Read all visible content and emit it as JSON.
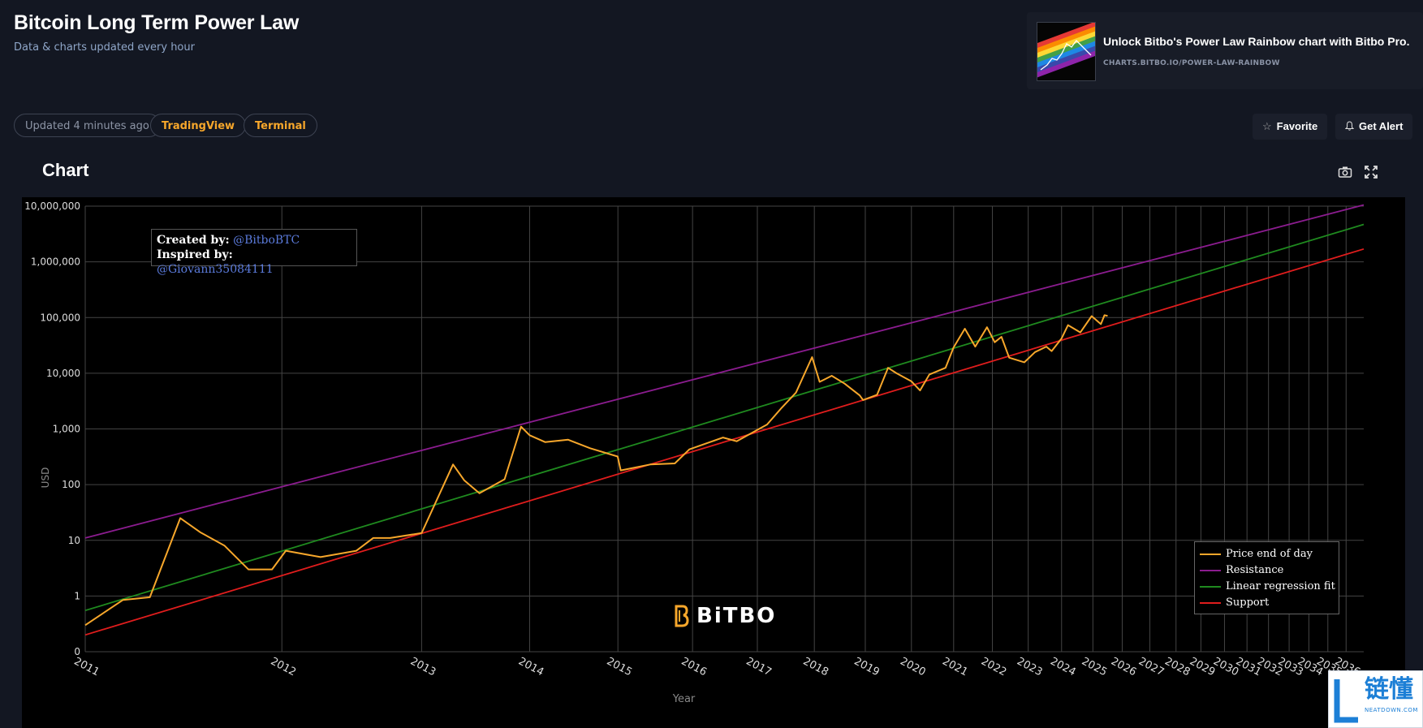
{
  "header": {
    "title": "Bitcoin Long Term Power Law",
    "subtitle": "Data & charts updated every hour"
  },
  "promo": {
    "title": "Unlock Bitbo's Power Law Rainbow chart with Bitbo Pro.",
    "link": "CHARTS.BITBO.IO/POWER-LAW-RAINBOW"
  },
  "pills": {
    "updated": "Updated 4 minutes ago",
    "tradingview": "TradingView",
    "terminal": "Terminal"
  },
  "actions": {
    "favorite": "Favorite",
    "get_alert": "Get Alert"
  },
  "chart_section": {
    "heading": "Chart"
  },
  "credits": {
    "created_label": "Created by:",
    "created_handle": "@BitboBTC",
    "inspired_label": "Inspired by:",
    "inspired_handle": "@Giovann35084111"
  },
  "watermark": "BiTBO",
  "corner_logo": {
    "text": "链懂",
    "sub": "NEATDOWN.COM"
  },
  "colors": {
    "price": "#f7a72b",
    "resistance": "#8b1c8f",
    "regression": "#1f8a1f",
    "support": "#e01d1d",
    "background": "#000000",
    "page": "#131722"
  },
  "chart_data": {
    "type": "line",
    "x_scale": "log",
    "y_scale": "log",
    "xlabel": "Year",
    "ylabel": "USD",
    "x_ticks": [
      "2011",
      "2012",
      "2013",
      "2014",
      "2015",
      "2016",
      "2017",
      "2018",
      "2019",
      "2020",
      "2021",
      "2022",
      "2023",
      "2024",
      "2025",
      "2026",
      "2027",
      "2028",
      "2029",
      "2030",
      "2031",
      "2032",
      "2033",
      "2034",
      "2035",
      "2036"
    ],
    "y_ticks": [
      "0",
      "1",
      "10",
      "100",
      "1,000",
      "10,000",
      "100,000",
      "1,000,000",
      "10,000,000"
    ],
    "y_tick_values": [
      0.1,
      1,
      10,
      100,
      1000,
      10000,
      100000,
      1000000,
      10000000
    ],
    "legend_position": "bottom-right",
    "grid": true,
    "series": [
      {
        "name": "Price end of day",
        "color": "#f7a72b",
        "points": [
          [
            "2011-01-01",
            0.3
          ],
          [
            "2011-03-01",
            0.85
          ],
          [
            "2011-04-15",
            0.95
          ],
          [
            "2011-06-08",
            25
          ],
          [
            "2011-07-15",
            14
          ],
          [
            "2011-09-01",
            8
          ],
          [
            "2011-10-20",
            3
          ],
          [
            "2011-12-10",
            3
          ],
          [
            "2012-01-10",
            6.5
          ],
          [
            "2012-04-01",
            5
          ],
          [
            "2012-07-01",
            6.5
          ],
          [
            "2012-08-15",
            11
          ],
          [
            "2012-10-01",
            11
          ],
          [
            "2013-01-01",
            13.5
          ],
          [
            "2013-04-09",
            230
          ],
          [
            "2013-05-15",
            120
          ],
          [
            "2013-07-05",
            70
          ],
          [
            "2013-10-01",
            125
          ],
          [
            "2013-11-30",
            1100
          ],
          [
            "2014-01-01",
            770
          ],
          [
            "2014-03-01",
            580
          ],
          [
            "2014-06-01",
            640
          ],
          [
            "2014-09-01",
            450
          ],
          [
            "2014-12-31",
            320
          ],
          [
            "2015-01-14",
            180
          ],
          [
            "2015-06-01",
            230
          ],
          [
            "2015-10-01",
            240
          ],
          [
            "2015-12-15",
            430
          ],
          [
            "2016-06-15",
            700
          ],
          [
            "2016-09-01",
            600
          ],
          [
            "2016-12-31",
            960
          ],
          [
            "2017-03-01",
            1200
          ],
          [
            "2017-06-01",
            2400
          ],
          [
            "2017-09-01",
            4500
          ],
          [
            "2017-12-17",
            19500
          ],
          [
            "2018-02-06",
            7000
          ],
          [
            "2018-05-01",
            9000
          ],
          [
            "2018-08-01",
            6500
          ],
          [
            "2018-11-20",
            4000
          ],
          [
            "2018-12-15",
            3300
          ],
          [
            "2019-04-01",
            4100
          ],
          [
            "2019-06-26",
            12500
          ],
          [
            "2019-09-01",
            10000
          ],
          [
            "2019-12-31",
            7200
          ],
          [
            "2020-03-13",
            4900
          ],
          [
            "2020-06-01",
            9500
          ],
          [
            "2020-10-20",
            12500
          ],
          [
            "2020-12-31",
            29000
          ],
          [
            "2021-04-14",
            63000
          ],
          [
            "2021-07-20",
            30000
          ],
          [
            "2021-11-10",
            67000
          ],
          [
            "2022-01-24",
            36000
          ],
          [
            "2022-04-01",
            45000
          ],
          [
            "2022-06-18",
            19000
          ],
          [
            "2022-11-21",
            15700
          ],
          [
            "2023-03-15",
            24000
          ],
          [
            "2023-07-15",
            30000
          ],
          [
            "2023-09-11",
            25000
          ],
          [
            "2023-12-31",
            42000
          ],
          [
            "2024-03-14",
            73000
          ],
          [
            "2024-08-05",
            54000
          ],
          [
            "2024-12-17",
            106000
          ],
          [
            "2025-04-08",
            76000
          ],
          [
            "2025-05-22",
            110000
          ],
          [
            "2025-07-01",
            107000
          ]
        ]
      },
      {
        "name": "Resistance",
        "color": "#8b1c8f",
        "points": [
          [
            "2011-01-01",
            11
          ],
          [
            "2037-01-01",
            10500000
          ]
        ]
      },
      {
        "name": "Linear regression fit",
        "color": "#1f8a1f",
        "points": [
          [
            "2011-01-01",
            0.55
          ],
          [
            "2037-01-01",
            4700000
          ]
        ]
      },
      {
        "name": "Support",
        "color": "#e01d1d",
        "points": [
          [
            "2011-01-01",
            0.2
          ],
          [
            "2037-01-01",
            1700000
          ]
        ]
      }
    ]
  }
}
